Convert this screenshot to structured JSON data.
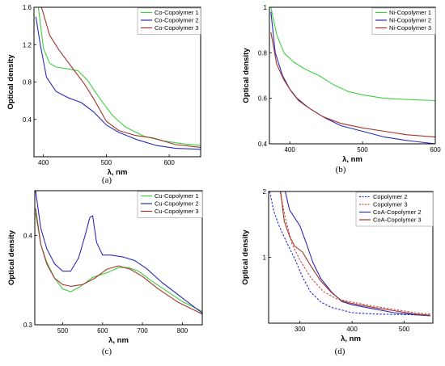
{
  "colors": {
    "green": "#3fce3f",
    "blue": "#2b2bb8",
    "red": "#a0352b",
    "dashed_blue": "#2a2acf",
    "dashed_red": "#c0504d"
  },
  "chart_data": [
    {
      "panel_label": "(a)",
      "type": "line",
      "xlabel": "λ, nm",
      "ylabel": "Optical density",
      "xlim": [
        385,
        650
      ],
      "ylim": [
        0,
        1.6
      ],
      "xticks": [
        400,
        500,
        600
      ],
      "yticks": [
        0,
        0.4,
        0.8,
        1.2,
        1.6
      ],
      "ytick_labels": [
        "",
        "0.4",
        "0.8",
        "1.2",
        "1.6"
      ],
      "legend_position": "top-right",
      "series": [
        {
          "name": "Co-Copolymer 1",
          "color": "green",
          "style": "solid",
          "points": [
            [
              392,
              1.6
            ],
            [
              400,
              1.16
            ],
            [
              410,
              1.0
            ],
            [
              420,
              0.96
            ],
            [
              440,
              0.94
            ],
            [
              455,
              0.92
            ],
            [
              470,
              0.82
            ],
            [
              490,
              0.62
            ],
            [
              510,
              0.44
            ],
            [
              530,
              0.32
            ],
            [
              560,
              0.22
            ],
            [
              590,
              0.17
            ],
            [
              620,
              0.14
            ],
            [
              650,
              0.12
            ]
          ]
        },
        {
          "name": "Co-Copolymer 2",
          "color": "blue",
          "style": "solid",
          "points": [
            [
              388,
              1.5
            ],
            [
              395,
              1.2
            ],
            [
              405,
              0.85
            ],
            [
              420,
              0.7
            ],
            [
              440,
              0.63
            ],
            [
              460,
              0.58
            ],
            [
              480,
              0.48
            ],
            [
              500,
              0.34
            ],
            [
              520,
              0.26
            ],
            [
              550,
              0.18
            ],
            [
              580,
              0.12
            ],
            [
              610,
              0.09
            ],
            [
              650,
              0.08
            ]
          ]
        },
        {
          "name": "Co-Copolymer 3",
          "color": "red",
          "style": "solid",
          "points": [
            [
              397,
              1.6
            ],
            [
              410,
              1.3
            ],
            [
              425,
              1.14
            ],
            [
              445,
              0.96
            ],
            [
              465,
              0.78
            ],
            [
              480,
              0.62
            ],
            [
              500,
              0.38
            ],
            [
              520,
              0.28
            ],
            [
              545,
              0.23
            ],
            [
              575,
              0.2
            ],
            [
              610,
              0.13
            ],
            [
              650,
              0.1
            ]
          ]
        }
      ]
    },
    {
      "panel_label": "(b)",
      "type": "line",
      "xlabel": "λ, nm",
      "ylabel": "Optical density",
      "xlim": [
        372,
        600
      ],
      "ylim": [
        0.4,
        1.0
      ],
      "xticks": [
        400,
        500,
        600
      ],
      "yticks": [
        0.4,
        0.6,
        0.8,
        1.0
      ],
      "ytick_labels": [
        "0.4",
        "0.6",
        "0.8",
        "1"
      ],
      "legend_position": "top-right",
      "series": [
        {
          "name": "Ni-Copolymer 1",
          "color": "green",
          "style": "solid",
          "points": [
            [
              374,
              1.0
            ],
            [
              382,
              0.88
            ],
            [
              392,
              0.8
            ],
            [
              405,
              0.76
            ],
            [
              420,
              0.73
            ],
            [
              440,
              0.7
            ],
            [
              460,
              0.66
            ],
            [
              480,
              0.63
            ],
            [
              500,
              0.615
            ],
            [
              530,
              0.6
            ],
            [
              560,
              0.595
            ],
            [
              600,
              0.59
            ]
          ]
        },
        {
          "name": "Ni-Copolymer 2",
          "color": "blue",
          "style": "solid",
          "points": [
            [
              374,
              0.98
            ],
            [
              380,
              0.8
            ],
            [
              390,
              0.7
            ],
            [
              400,
              0.64
            ],
            [
              410,
              0.6
            ],
            [
              425,
              0.56
            ],
            [
              445,
              0.52
            ],
            [
              470,
              0.48
            ],
            [
              500,
              0.455
            ],
            [
              530,
              0.43
            ],
            [
              560,
              0.415
            ],
            [
              600,
              0.4
            ]
          ]
        },
        {
          "name": "Ni-Copolymer 3",
          "color": "red",
          "style": "solid",
          "points": [
            [
              374,
              0.89
            ],
            [
              382,
              0.75
            ],
            [
              392,
              0.68
            ],
            [
              402,
              0.63
            ],
            [
              412,
              0.59
            ],
            [
              425,
              0.56
            ],
            [
              445,
              0.52
            ],
            [
              470,
              0.49
            ],
            [
              500,
              0.47
            ],
            [
              530,
              0.455
            ],
            [
              560,
              0.44
            ],
            [
              600,
              0.43
            ]
          ]
        }
      ]
    },
    {
      "panel_label": "(c)",
      "type": "line",
      "xlabel": "λ, nm",
      "ylabel": "Optical density",
      "xlim": [
        430,
        850
      ],
      "ylim": [
        0.3,
        0.45
      ],
      "xticks": [
        500,
        600,
        700,
        800
      ],
      "yticks": [
        0.3,
        0.4
      ],
      "ytick_labels": [
        "0.3",
        "0.4"
      ],
      "legend_position": "top-right",
      "series": [
        {
          "name": "Cu-Copolymer 1",
          "color": "green",
          "style": "solid",
          "points": [
            [
              432,
              0.425
            ],
            [
              445,
              0.39
            ],
            [
              460,
              0.37
            ],
            [
              480,
              0.352
            ],
            [
              500,
              0.34
            ],
            [
              520,
              0.337
            ],
            [
              545,
              0.343
            ],
            [
              575,
              0.353
            ],
            [
              610,
              0.358
            ],
            [
              640,
              0.364
            ],
            [
              665,
              0.364
            ],
            [
              690,
              0.36
            ],
            [
              720,
              0.35
            ],
            [
              760,
              0.338
            ],
            [
              800,
              0.326
            ],
            [
              850,
              0.315
            ]
          ]
        },
        {
          "name": "Cu-Copolymer 2",
          "color": "blue",
          "style": "solid",
          "points": [
            [
              432,
              0.45
            ],
            [
              445,
              0.408
            ],
            [
              460,
              0.385
            ],
            [
              480,
              0.368
            ],
            [
              500,
              0.36
            ],
            [
              520,
              0.36
            ],
            [
              540,
              0.375
            ],
            [
              555,
              0.398
            ],
            [
              568,
              0.42
            ],
            [
              575,
              0.422
            ],
            [
              585,
              0.392
            ],
            [
              600,
              0.378
            ],
            [
              620,
              0.378
            ],
            [
              650,
              0.376
            ],
            [
              680,
              0.372
            ],
            [
              710,
              0.363
            ],
            [
              750,
              0.347
            ],
            [
              800,
              0.33
            ],
            [
              850,
              0.313
            ]
          ]
        },
        {
          "name": "Cu-Copolymer 3",
          "color": "red",
          "style": "solid",
          "points": [
            [
              432,
              0.43
            ],
            [
              445,
              0.39
            ],
            [
              460,
              0.368
            ],
            [
              480,
              0.352
            ],
            [
              500,
              0.345
            ],
            [
              520,
              0.343
            ],
            [
              550,
              0.345
            ],
            [
              580,
              0.352
            ],
            [
              610,
              0.362
            ],
            [
              640,
              0.366
            ],
            [
              670,
              0.362
            ],
            [
              700,
              0.354
            ],
            [
              740,
              0.34
            ],
            [
              790,
              0.325
            ],
            [
              850,
              0.312
            ]
          ]
        }
      ]
    },
    {
      "panel_label": "(d)",
      "type": "line",
      "xlabel": "λ, nm",
      "ylabel": "Optical density",
      "xlim": [
        240,
        555
      ],
      "ylim": [
        0,
        2
      ],
      "xticks": [
        300,
        400,
        500
      ],
      "yticks": [
        0,
        1,
        2
      ],
      "ytick_labels": [
        "",
        "1",
        "2"
      ],
      "legend_position": "top-right",
      "series": [
        {
          "name": "Copolymer 2",
          "color": "dashed_blue",
          "style": "dashed",
          "points": [
            [
              242,
              2.0
            ],
            [
              250,
              1.7
            ],
            [
              260,
              1.48
            ],
            [
              275,
              1.22
            ],
            [
              290,
              0.98
            ],
            [
              305,
              0.7
            ],
            [
              320,
              0.48
            ],
            [
              340,
              0.32
            ],
            [
              360,
              0.24
            ],
            [
              380,
              0.2
            ],
            [
              400,
              0.16
            ],
            [
              440,
              0.14
            ],
            [
              500,
              0.13
            ],
            [
              550,
              0.12
            ]
          ]
        },
        {
          "name": "Copolymer 3",
          "color": "dashed_red",
          "style": "dashed",
          "points": [
            [
              262,
              2.0
            ],
            [
              272,
              1.6
            ],
            [
              285,
              1.2
            ],
            [
              300,
              0.96
            ],
            [
              320,
              0.7
            ],
            [
              345,
              0.48
            ],
            [
              370,
              0.37
            ],
            [
              400,
              0.32
            ],
            [
              440,
              0.26
            ],
            [
              480,
              0.21
            ],
            [
              520,
              0.16
            ],
            [
              550,
              0.14
            ]
          ]
        },
        {
          "name": "CoA-Copolymer 2",
          "color": "blue",
          "style": "solid",
          "points": [
            [
              272,
              2.0
            ],
            [
              280,
              1.72
            ],
            [
              290,
              1.6
            ],
            [
              300,
              1.48
            ],
            [
              312,
              1.22
            ],
            [
              325,
              0.92
            ],
            [
              340,
              0.68
            ],
            [
              360,
              0.48
            ],
            [
              380,
              0.33
            ],
            [
              400,
              0.28
            ],
            [
              440,
              0.22
            ],
            [
              480,
              0.16
            ],
            [
              520,
              0.13
            ],
            [
              550,
              0.11
            ]
          ]
        },
        {
          "name": "CoA-Copolymer 3",
          "color": "red",
          "style": "solid",
          "points": [
            [
              263,
              2.0
            ],
            [
              270,
              1.55
            ],
            [
              280,
              1.32
            ],
            [
              290,
              1.17
            ],
            [
              305,
              1.08
            ],
            [
              320,
              0.88
            ],
            [
              340,
              0.64
            ],
            [
              360,
              0.47
            ],
            [
              380,
              0.34
            ],
            [
              400,
              0.3
            ],
            [
              440,
              0.24
            ],
            [
              480,
              0.19
            ],
            [
              520,
              0.14
            ],
            [
              550,
              0.12
            ]
          ]
        }
      ]
    }
  ]
}
